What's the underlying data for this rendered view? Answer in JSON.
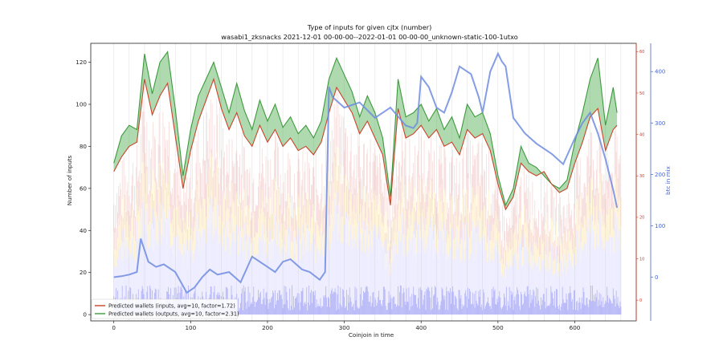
{
  "chart_data": {
    "type": "line",
    "title": "Type of inputs for given cjtx (number)",
    "subtitle": "wasabi1_zksnacks 2021-12-01 00-00-00--2022-01-01 00-00-00_unknown-static-100-1utxo",
    "xlabel": "Coinjoin in time",
    "ylabel": "Number of inputs",
    "y2label": "btc in mix",
    "xlim": [
      -30,
      680
    ],
    "ylim": [
      -3,
      129
    ],
    "y2lim": [
      -85,
      455
    ],
    "y3lim": [
      -5,
      62
    ],
    "xticks": [
      0,
      100,
      200,
      300,
      400,
      500,
      600
    ],
    "yticks": [
      0,
      20,
      40,
      60,
      80,
      100,
      120
    ],
    "y2ticks": [
      0,
      100,
      200,
      300,
      400
    ],
    "y3ticks": [
      0,
      10,
      20,
      30,
      40,
      50,
      60
    ],
    "grid": "vertical",
    "legend_position": "lower-left",
    "colors": {
      "inputs_line": "#c8452b",
      "outputs_line": "#3e9a3e",
      "outputs_fill": "#5fb35f",
      "inputs_fill": "#e85050",
      "btc_line": "#6f8ce0",
      "bars": "#b8b8ff",
      "red_axis": "#d03a2a",
      "blue_axis": "#4a64d0"
    },
    "series": [
      {
        "name": "Predicted wallets (inputs, avg=10, factor=1.72)",
        "axis": "left",
        "x": [
          0,
          10,
          20,
          30,
          40,
          50,
          60,
          70,
          80,
          90,
          100,
          110,
          120,
          130,
          140,
          150,
          160,
          170,
          180,
          190,
          200,
          210,
          220,
          230,
          240,
          250,
          260,
          270,
          280,
          290,
          300,
          310,
          320,
          330,
          340,
          350,
          360,
          370,
          380,
          390,
          400,
          410,
          420,
          430,
          440,
          450,
          460,
          470,
          480,
          490,
          500,
          510,
          520,
          530,
          540,
          550,
          560,
          570,
          580,
          590,
          600,
          610,
          620,
          630,
          640,
          650,
          655
        ],
        "values": [
          68,
          75,
          80,
          82,
          112,
          95,
          104,
          110,
          85,
          60,
          78,
          92,
          102,
          112,
          98,
          88,
          96,
          85,
          80,
          90,
          82,
          88,
          80,
          84,
          78,
          80,
          76,
          82,
          96,
          108,
          102,
          96,
          86,
          92,
          84,
          76,
          52,
          98,
          84,
          86,
          90,
          84,
          88,
          80,
          82,
          76,
          88,
          84,
          86,
          78,
          62,
          50,
          56,
          72,
          68,
          66,
          68,
          62,
          58,
          60,
          72,
          82,
          94,
          98,
          78,
          88,
          90
        ]
      },
      {
        "name": "Predicted wallets (outputs, avg=10, factor=2.31)",
        "axis": "left",
        "x": [
          0,
          10,
          20,
          30,
          40,
          50,
          60,
          70,
          80,
          90,
          100,
          110,
          120,
          130,
          140,
          150,
          160,
          170,
          180,
          190,
          200,
          210,
          220,
          230,
          240,
          250,
          260,
          270,
          280,
          290,
          300,
          310,
          320,
          330,
          340,
          350,
          360,
          370,
          380,
          390,
          400,
          410,
          420,
          430,
          440,
          450,
          460,
          470,
          480,
          490,
          500,
          510,
          520,
          530,
          540,
          550,
          560,
          570,
          580,
          590,
          600,
          610,
          620,
          630,
          640,
          650,
          655
        ],
        "values": [
          72,
          85,
          90,
          88,
          124,
          105,
          120,
          125,
          98,
          66,
          88,
          104,
          112,
          120,
          108,
          96,
          110,
          97,
          88,
          102,
          92,
          100,
          89,
          94,
          86,
          90,
          84,
          92,
          112,
          122,
          114,
          106,
          94,
          104,
          96,
          84,
          56,
          112,
          94,
          96,
          100,
          92,
          98,
          88,
          94,
          84,
          100,
          94,
          96,
          86,
          66,
          52,
          60,
          80,
          72,
          70,
          66,
          62,
          60,
          64,
          82,
          96,
          112,
          122,
          90,
          108,
          96
        ]
      },
      {
        "name": "btc in mix",
        "axis": "right",
        "x": [
          0,
          10,
          20,
          30,
          35,
          45,
          55,
          65,
          80,
          95,
          105,
          115,
          125,
          135,
          150,
          165,
          180,
          200,
          210,
          220,
          230,
          245,
          255,
          268,
          275,
          280,
          285,
          300,
          320,
          340,
          360,
          380,
          390,
          395,
          400,
          410,
          420,
          430,
          440,
          450,
          465,
          475,
          480,
          490,
          500,
          505,
          510,
          520,
          535,
          550,
          570,
          585,
          600,
          610,
          620,
          630,
          640,
          650,
          655
        ],
        "values": [
          0,
          2,
          5,
          10,
          75,
          30,
          20,
          25,
          10,
          -30,
          -20,
          0,
          15,
          5,
          10,
          -10,
          40,
          20,
          10,
          30,
          35,
          15,
          10,
          -5,
          10,
          370,
          350,
          330,
          340,
          310,
          330,
          295,
          290,
          300,
          390,
          370,
          330,
          320,
          360,
          410,
          395,
          350,
          320,
          400,
          435,
          420,
          410,
          310,
          280,
          260,
          240,
          220,
          270,
          300,
          320,
          280,
          230,
          170,
          135
        ]
      }
    ],
    "bars": {
      "name": "",
      "axis": "left",
      "x_step": 1,
      "typical_range": [
        2,
        14
      ]
    },
    "legend": [
      "Predicted wallets (inputs, avg=10, factor=1.72)",
      "Predicted wallets (outputs, avg=10, factor=2.31)"
    ]
  }
}
